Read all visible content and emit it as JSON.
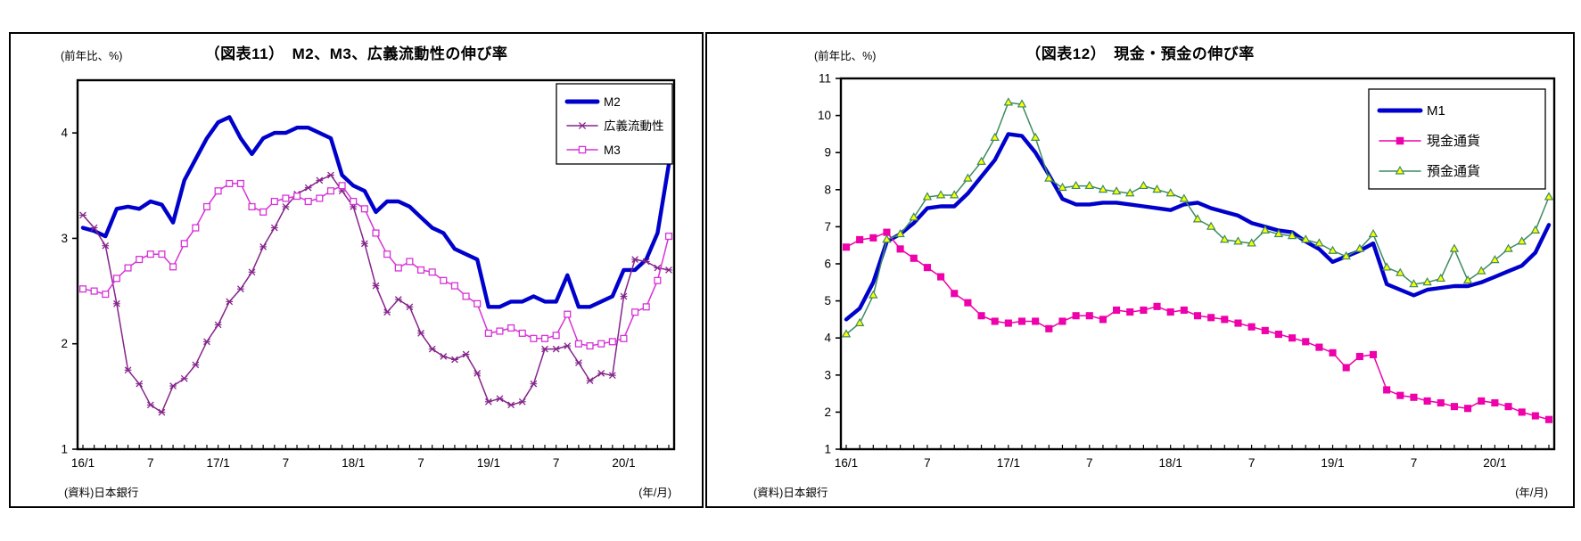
{
  "page": {
    "background": "#ffffff",
    "source_note": "(資料)日本銀行",
    "x_axis_note": "(年/月)"
  },
  "chart_data": [
    {
      "type": "line",
      "title": "（図表11）　M2、M3、広義流動性の伸び率",
      "unit_label": "(前年比、%)",
      "source_note": "(資料)日本銀行",
      "x_axis_note": "(年/月)",
      "x_start": "2016/1",
      "x_end": "2020/5",
      "n_points": 53,
      "x_tick_interval_months": 6,
      "x_tick_labels": [
        "16/1",
        "7",
        "17/1",
        "7",
        "18/1",
        "7",
        "19/1",
        "7",
        "20/1"
      ],
      "ylim": [
        1,
        4.5
      ],
      "y_ticks": [
        1,
        2,
        3,
        4
      ],
      "grid": false,
      "legend_position": "top-right",
      "series": [
        {
          "name": "M2",
          "color": "#0000CC",
          "marker": "none",
          "marker_fill": "",
          "line_width": 4.4,
          "values": [
            3.1,
            3.07,
            3.02,
            3.28,
            3.3,
            3.28,
            3.35,
            3.32,
            3.15,
            3.55,
            3.75,
            3.95,
            4.1,
            4.15,
            3.95,
            3.8,
            3.95,
            4.0,
            4.0,
            4.05,
            4.05,
            4.0,
            3.95,
            3.6,
            3.5,
            3.45,
            3.25,
            3.35,
            3.35,
            3.3,
            3.2,
            3.1,
            3.05,
            2.9,
            2.85,
            2.8,
            2.35,
            2.35,
            2.4,
            2.4,
            2.45,
            2.4,
            2.4,
            2.65,
            2.35,
            2.35,
            2.4,
            2.45,
            2.7,
            2.7,
            2.8,
            3.05,
            3.7
          ]
        },
        {
          "name": "広義流動性",
          "color": "#85248B",
          "marker": "star",
          "marker_fill": "#85248B",
          "line_width": 1.5,
          "values": [
            3.22,
            3.1,
            2.93,
            2.38,
            1.75,
            1.62,
            1.42,
            1.35,
            1.6,
            1.67,
            1.8,
            2.02,
            2.18,
            2.4,
            2.52,
            2.68,
            2.92,
            3.1,
            3.3,
            3.42,
            3.48,
            3.55,
            3.6,
            3.45,
            3.3,
            2.95,
            2.55,
            2.3,
            2.42,
            2.35,
            2.1,
            1.95,
            1.88,
            1.85,
            1.9,
            1.72,
            1.45,
            1.48,
            1.42,
            1.45,
            1.62,
            1.95,
            1.95,
            1.98,
            1.82,
            1.65,
            1.72,
            1.7,
            2.45,
            2.8,
            2.78,
            2.72,
            2.7
          ]
        },
        {
          "name": "M3",
          "color": "#D633D6",
          "marker": "square-open",
          "marker_fill": "#ffffff",
          "line_width": 1.5,
          "values": [
            2.52,
            2.5,
            2.47,
            2.62,
            2.72,
            2.8,
            2.85,
            2.85,
            2.73,
            2.95,
            3.1,
            3.3,
            3.45,
            3.52,
            3.52,
            3.3,
            3.25,
            3.35,
            3.38,
            3.4,
            3.35,
            3.38,
            3.45,
            3.5,
            3.35,
            3.28,
            3.05,
            2.85,
            2.72,
            2.78,
            2.7,
            2.68,
            2.6,
            2.55,
            2.45,
            2.38,
            2.1,
            2.12,
            2.15,
            2.1,
            2.05,
            2.05,
            2.08,
            2.28,
            2.0,
            1.98,
            2.0,
            2.02,
            2.05,
            2.3,
            2.35,
            2.6,
            3.02
          ]
        }
      ]
    },
    {
      "type": "line",
      "title": "（図表12）　現金・預金の伸び率",
      "unit_label": "(前年比、%)",
      "source_note": "(資料)日本銀行",
      "x_axis_note": "(年/月)",
      "x_start": "2016/1",
      "x_end": "2020/5",
      "n_points": 53,
      "x_tick_interval_months": 6,
      "x_tick_labels": [
        "16/1",
        "7",
        "17/1",
        "7",
        "18/1",
        "7",
        "19/1",
        "7",
        "20/1"
      ],
      "ylim": [
        1,
        11
      ],
      "y_ticks": [
        1,
        2,
        3,
        4,
        5,
        6,
        7,
        8,
        9,
        10,
        11
      ],
      "grid": false,
      "legend_position": "top-right",
      "series": [
        {
          "name": "M1",
          "color": "#0000CC",
          "marker": "none",
          "marker_fill": "",
          "line_width": 4.4,
          "values": [
            4.5,
            4.8,
            5.5,
            6.6,
            6.8,
            7.1,
            7.5,
            7.55,
            7.55,
            7.9,
            8.35,
            8.8,
            9.5,
            9.45,
            9.0,
            8.4,
            7.75,
            7.6,
            7.6,
            7.65,
            7.65,
            7.6,
            7.55,
            7.5,
            7.45,
            7.6,
            7.65,
            7.5,
            7.4,
            7.3,
            7.1,
            7.0,
            6.9,
            6.85,
            6.6,
            6.4,
            6.05,
            6.2,
            6.35,
            6.55,
            5.45,
            5.3,
            5.15,
            5.3,
            5.35,
            5.4,
            5.4,
            5.5,
            5.65,
            5.8,
            5.95,
            6.3,
            7.05
          ]
        },
        {
          "name": "現金通貨",
          "color": "#EE00AA",
          "marker": "square-filled",
          "marker_fill": "#EE00AA",
          "line_width": 1.5,
          "values": [
            6.45,
            6.65,
            6.7,
            6.85,
            6.4,
            6.15,
            5.9,
            5.65,
            5.2,
            4.95,
            4.6,
            4.45,
            4.4,
            4.45,
            4.45,
            4.25,
            4.45,
            4.6,
            4.6,
            4.5,
            4.75,
            4.7,
            4.75,
            4.85,
            4.7,
            4.75,
            4.6,
            4.55,
            4.5,
            4.4,
            4.3,
            4.2,
            4.1,
            4.0,
            3.9,
            3.75,
            3.6,
            3.2,
            3.5,
            3.55,
            2.6,
            2.45,
            2.4,
            2.3,
            2.25,
            2.15,
            2.1,
            2.3,
            2.25,
            2.15,
            2.0,
            1.9,
            1.8
          ]
        },
        {
          "name": "預金通貨",
          "color": "#3D8B60",
          "marker": "triangle",
          "marker_fill": "#FFFF00",
          "line_width": 1.5,
          "values": [
            4.1,
            4.4,
            5.15,
            6.65,
            6.8,
            7.25,
            7.8,
            7.85,
            7.85,
            8.3,
            8.75,
            9.4,
            10.35,
            10.3,
            9.4,
            8.3,
            8.05,
            8.1,
            8.1,
            8.0,
            7.95,
            7.9,
            8.1,
            8.0,
            7.9,
            7.75,
            7.2,
            7.0,
            6.65,
            6.6,
            6.55,
            6.9,
            6.8,
            6.75,
            6.65,
            6.55,
            6.35,
            6.2,
            6.4,
            6.8,
            5.9,
            5.75,
            5.45,
            5.5,
            5.6,
            6.4,
            5.55,
            5.8,
            6.1,
            6.4,
            6.6,
            6.9,
            7.8
          ]
        }
      ]
    }
  ]
}
